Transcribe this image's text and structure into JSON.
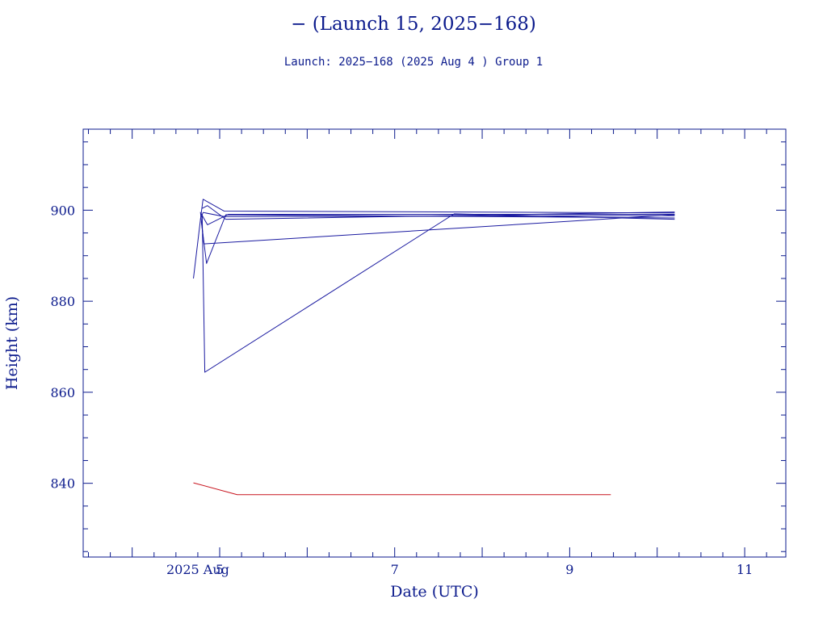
{
  "colors": {
    "frame": "#0b1a8c",
    "series_blue": "#1a1aa0",
    "series_red": "#c8141e"
  },
  "chart_data": {
    "type": "line",
    "title": "− (Launch 15, 2025−168)",
    "subtitle": "Launch: 2025−168  (2025 Aug  4 )  Group 1",
    "xlabel": "Date (UTC)",
    "ylabel": "Height (km)",
    "x_unit": "days of August 2025",
    "xlim": [
      3.44,
      11.47
    ],
    "ylim": [
      823.8,
      917.8
    ],
    "x_ticks": [
      {
        "value": 4.75,
        "label": "2025 Aug"
      },
      {
        "value": 5.0,
        "label": "5"
      },
      {
        "value": 7.0,
        "label": "7"
      },
      {
        "value": 9.0,
        "label": "9"
      },
      {
        "value": 11.0,
        "label": "11"
      }
    ],
    "y_ticks": [
      {
        "value": 840,
        "label": "840"
      },
      {
        "value": 860,
        "label": "860"
      },
      {
        "value": 880,
        "label": "880"
      },
      {
        "value": 900,
        "label": "900"
      }
    ],
    "grid": false,
    "series": [
      {
        "color": "blue",
        "values": [
          [
            4.7,
            885.0
          ],
          [
            4.79,
            899.5
          ],
          [
            4.81,
            902.4
          ],
          [
            5.05,
            899.8
          ],
          [
            10.2,
            899.4
          ]
        ]
      },
      {
        "color": "blue",
        "values": [
          [
            4.78,
            898.0
          ],
          [
            4.81,
            899.5
          ],
          [
            5.05,
            898.6
          ],
          [
            10.2,
            898.8
          ]
        ]
      },
      {
        "color": "blue",
        "values": [
          [
            4.79,
            897.5
          ],
          [
            4.85,
            888.3
          ],
          [
            5.07,
            899.0
          ],
          [
            10.2,
            898.3
          ]
        ]
      },
      {
        "color": "blue",
        "values": [
          [
            4.8,
            899.0
          ],
          [
            4.83,
            864.4
          ],
          [
            7.68,
            899.2
          ],
          [
            10.2,
            898.0
          ]
        ]
      },
      {
        "color": "blue",
        "values": [
          [
            4.78,
            899.6
          ],
          [
            4.82,
            892.6
          ],
          [
            10.2,
            899.0
          ]
        ]
      },
      {
        "color": "blue",
        "values": [
          [
            4.8,
            900.4
          ],
          [
            4.86,
            901.0
          ],
          [
            5.07,
            898.0
          ],
          [
            10.2,
            899.6
          ]
        ]
      },
      {
        "color": "blue",
        "values": [
          [
            4.79,
            899.2
          ],
          [
            4.86,
            896.8
          ],
          [
            5.1,
            899.1
          ],
          [
            10.2,
            899.1
          ]
        ]
      },
      {
        "color": "red",
        "values": [
          [
            4.7,
            840.1
          ],
          [
            5.2,
            837.5
          ],
          [
            9.47,
            837.5
          ]
        ]
      }
    ]
  }
}
